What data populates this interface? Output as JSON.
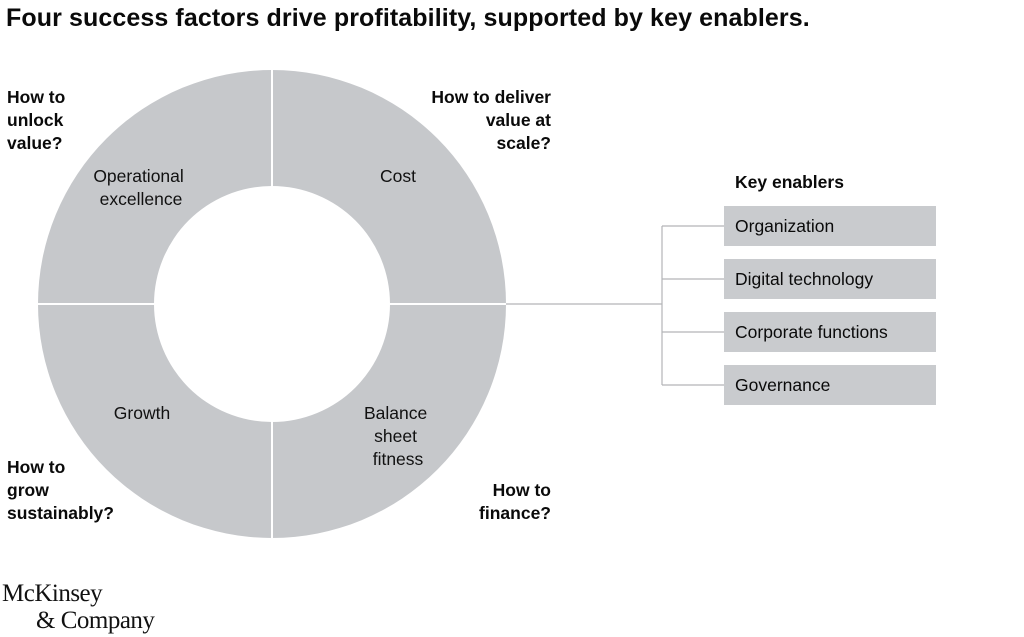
{
  "title": "Four success factors drive profitability, supported by key enablers.",
  "segments": [
    {
      "name": "Operational excellence",
      "lines": [
        "Operational",
        "excellence"
      ]
    },
    {
      "name": "Cost",
      "lines": [
        "Cost"
      ]
    },
    {
      "name": "Growth",
      "lines": [
        "Growth"
      ]
    },
    {
      "name": "Balance sheet fitness",
      "lines": [
        "Balance",
        "sheet",
        "fitness"
      ]
    }
  ],
  "questions": {
    "unlock": [
      "How to",
      "unlock",
      "value?"
    ],
    "deliver": [
      "How to deliver",
      "value at",
      "scale?"
    ],
    "grow": [
      "How to",
      "grow",
      "sustainably?"
    ],
    "finance": [
      "How to",
      "finance?"
    ]
  },
  "enablers": {
    "title": "Key enablers",
    "items": [
      "Organization",
      "Digital technology",
      "Corporate functions",
      "Governance"
    ]
  },
  "logo": [
    "McKinsey",
    "& Company"
  ],
  "colors": {
    "segment_fill": "#c6c8cb",
    "divider": "#ffffff",
    "connector": "#b3b5b8",
    "enabler_fill": "#c9cbce"
  }
}
